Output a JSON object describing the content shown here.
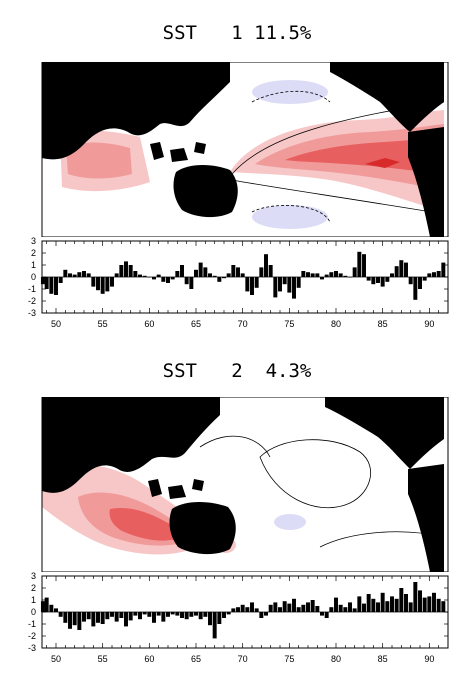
{
  "panels": [
    {
      "title": "SST   1 11.5%",
      "chart_data": {
        "type": "bar",
        "title": "SST   1 11.5%",
        "xlabel": "",
        "ylabel": "",
        "xlim": [
          1948.5,
          1992.0
        ],
        "ylim": [
          -3,
          3
        ],
        "yticks": [
          -3,
          -2,
          -1,
          0,
          1,
          2,
          3
        ],
        "xticks": [
          50,
          55,
          60,
          65,
          70,
          75,
          80,
          85,
          90
        ],
        "grid": false,
        "x": [
          1948.6,
          1949.0,
          1949.5,
          1950.0,
          1950.5,
          1951.0,
          1951.5,
          1952.0,
          1952.5,
          1953.0,
          1953.5,
          1954.0,
          1954.5,
          1955.0,
          1955.5,
          1956.0,
          1956.5,
          1957.0,
          1957.5,
          1958.0,
          1958.5,
          1959.0,
          1959.5,
          1960.0,
          1960.5,
          1961.0,
          1961.5,
          1962.0,
          1962.5,
          1963.0,
          1963.5,
          1964.0,
          1964.5,
          1965.0,
          1965.5,
          1966.0,
          1966.5,
          1967.0,
          1967.5,
          1968.0,
          1968.5,
          1969.0,
          1969.5,
          1970.0,
          1970.5,
          1971.0,
          1971.5,
          1972.0,
          1972.5,
          1973.0,
          1973.5,
          1974.0,
          1974.5,
          1975.0,
          1975.5,
          1976.0,
          1976.5,
          1977.0,
          1977.5,
          1978.0,
          1978.5,
          1979.0,
          1979.5,
          1980.0,
          1980.5,
          1981.0,
          1981.5,
          1982.0,
          1982.5,
          1983.0,
          1983.5,
          1984.0,
          1984.5,
          1985.0,
          1985.5,
          1986.0,
          1986.5,
          1987.0,
          1987.5,
          1988.0,
          1988.5,
          1989.0,
          1989.5,
          1990.0,
          1990.5,
          1991.0,
          1991.5
        ],
        "values": [
          -0.6,
          -1.0,
          -1.4,
          -1.5,
          -0.5,
          0.6,
          0.3,
          0.2,
          0.4,
          0.5,
          0.3,
          -0.8,
          -1.1,
          -1.4,
          -1.2,
          -0.8,
          0.3,
          1.0,
          1.3,
          1.0,
          0.5,
          0.2,
          0.1,
          0.0,
          -0.2,
          0.2,
          -0.4,
          -0.5,
          -0.2,
          0.5,
          1.0,
          -0.6,
          -1.0,
          0.6,
          1.2,
          0.8,
          0.3,
          0.1,
          -0.4,
          -0.1,
          0.3,
          1.0,
          0.8,
          0.3,
          -1.2,
          -1.5,
          -0.9,
          0.8,
          1.9,
          1.0,
          -1.7,
          -1.2,
          -0.6,
          -1.3,
          -1.8,
          -0.9,
          0.5,
          0.4,
          0.3,
          0.3,
          -0.2,
          0.2,
          0.4,
          0.5,
          0.3,
          0.1,
          0.0,
          0.8,
          2.1,
          1.9,
          -0.3,
          -0.6,
          -0.5,
          -0.8,
          -0.4,
          0.3,
          0.9,
          1.4,
          1.2,
          -0.6,
          -1.9,
          -1.0,
          -0.3,
          0.3,
          0.4,
          0.5,
          1.2
        ]
      }
    },
    {
      "title": "SST   2  4.3%",
      "chart_data": {
        "type": "bar",
        "title": "SST   2  4.3%",
        "xlabel": "",
        "ylabel": "",
        "xlim": [
          1948.5,
          1992.0
        ],
        "ylim": [
          -3,
          3
        ],
        "yticks": [
          -3,
          -2,
          -1,
          0,
          1,
          2,
          3
        ],
        "xticks": [
          50,
          55,
          60,
          65,
          70,
          75,
          80,
          85,
          90
        ],
        "grid": false,
        "x": [
          1948.6,
          1949.0,
          1949.5,
          1950.0,
          1950.5,
          1951.0,
          1951.5,
          1952.0,
          1952.5,
          1953.0,
          1953.5,
          1954.0,
          1954.5,
          1955.0,
          1955.5,
          1956.0,
          1956.5,
          1957.0,
          1957.5,
          1958.0,
          1958.5,
          1959.0,
          1959.5,
          1960.0,
          1960.5,
          1961.0,
          1961.5,
          1962.0,
          1962.5,
          1963.0,
          1963.5,
          1964.0,
          1964.5,
          1965.0,
          1965.5,
          1966.0,
          1966.5,
          1967.0,
          1967.5,
          1968.0,
          1968.5,
          1969.0,
          1969.5,
          1970.0,
          1970.5,
          1971.0,
          1971.5,
          1972.0,
          1972.5,
          1973.0,
          1973.5,
          1974.0,
          1974.5,
          1975.0,
          1975.5,
          1976.0,
          1976.5,
          1977.0,
          1977.5,
          1978.0,
          1978.5,
          1979.0,
          1979.5,
          1980.0,
          1980.5,
          1981.0,
          1981.5,
          1982.0,
          1982.5,
          1983.0,
          1983.5,
          1984.0,
          1984.5,
          1985.0,
          1985.5,
          1986.0,
          1986.5,
          1987.0,
          1987.5,
          1988.0,
          1988.5,
          1989.0,
          1989.5,
          1990.0,
          1990.5,
          1991.0,
          1991.5
        ],
        "values": [
          0.9,
          1.2,
          0.6,
          0.3,
          -0.4,
          -0.9,
          -1.4,
          -1.1,
          -1.5,
          -0.8,
          -0.6,
          -1.2,
          -0.9,
          -1.0,
          -0.6,
          -0.4,
          -0.8,
          -0.5,
          -1.2,
          -0.7,
          -0.3,
          -0.6,
          -0.2,
          -0.4,
          -0.9,
          -0.3,
          -0.8,
          -0.4,
          -0.2,
          -0.3,
          -0.5,
          -0.6,
          -0.4,
          -0.3,
          -0.6,
          -0.4,
          -1.1,
          -2.2,
          -1.0,
          -0.5,
          -0.2,
          0.3,
          0.4,
          0.6,
          0.4,
          0.8,
          0.3,
          -0.5,
          -0.3,
          0.6,
          0.8,
          0.4,
          0.9,
          0.7,
          1.1,
          0.4,
          0.6,
          0.8,
          1.0,
          0.5,
          -0.3,
          -0.5,
          0.4,
          1.2,
          0.6,
          0.4,
          0.8,
          0.3,
          1.3,
          0.7,
          1.5,
          1.1,
          0.8,
          1.6,
          0.9,
          1.3,
          1.1,
          2.0,
          1.5,
          0.8,
          2.5,
          1.8,
          1.2,
          1.3,
          1.6,
          1.1,
          0.9
        ]
      }
    }
  ]
}
